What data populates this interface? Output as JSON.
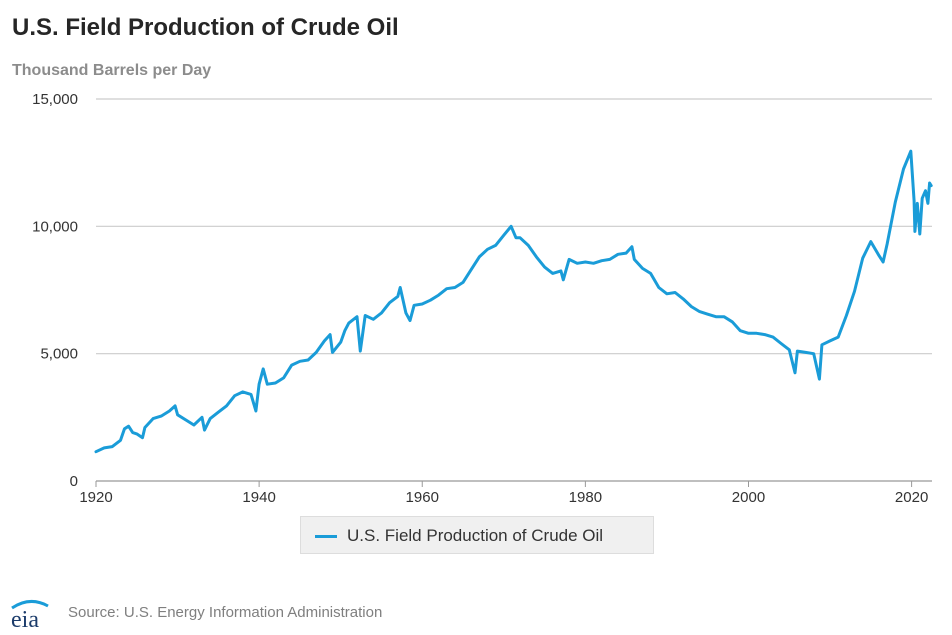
{
  "title": "U.S. Field Production of Crude Oil",
  "subtitle": "Thousand Barrels per Day",
  "legend": {
    "label": "U.S. Field Production of Crude Oil",
    "color": "#1a9cd8"
  },
  "source": "Source: U.S. Energy Information Administration",
  "logo": {
    "text": "eia",
    "icon": "eia-logo-icon"
  },
  "chart_data": {
    "type": "line",
    "title": "U.S. Field Production of Crude Oil",
    "ylabel": "Thousand Barrels per Day",
    "xlabel": "",
    "xlim": [
      1920,
      2022.5
    ],
    "ylim": [
      0,
      15000
    ],
    "x_ticks": [
      1920,
      1940,
      1960,
      1980,
      2000,
      2020
    ],
    "x_tick_labels": [
      "1920",
      "1940",
      "1960",
      "1980",
      "2000",
      "2020"
    ],
    "y_ticks": [
      0,
      5000,
      10000,
      15000
    ],
    "y_tick_labels": [
      "0",
      "5,000",
      "10,000",
      "15,000"
    ],
    "grid": "horizontal",
    "legend_position": "bottom-center",
    "series": [
      {
        "name": "U.S. Field Production of Crude Oil",
        "color": "#1a9cd8",
        "points": [
          [
            1920,
            1150
          ],
          [
            1921,
            1300
          ],
          [
            1922,
            1350
          ],
          [
            1923,
            1600
          ],
          [
            1923.5,
            2050
          ],
          [
            1924,
            2150
          ],
          [
            1924.5,
            1900
          ],
          [
            1925,
            1850
          ],
          [
            1925.7,
            1700
          ],
          [
            1926,
            2100
          ],
          [
            1927,
            2450
          ],
          [
            1928,
            2550
          ],
          [
            1929,
            2750
          ],
          [
            1929.7,
            2950
          ],
          [
            1930,
            2600
          ],
          [
            1931,
            2400
          ],
          [
            1932,
            2200
          ],
          [
            1933,
            2500
          ],
          [
            1933.3,
            2000
          ],
          [
            1934,
            2450
          ],
          [
            1935,
            2700
          ],
          [
            1936,
            2950
          ],
          [
            1937,
            3350
          ],
          [
            1938,
            3500
          ],
          [
            1939,
            3400
          ],
          [
            1939.6,
            2750
          ],
          [
            1940,
            3800
          ],
          [
            1940.5,
            4400
          ],
          [
            1941,
            3800
          ],
          [
            1942,
            3850
          ],
          [
            1943,
            4050
          ],
          [
            1944,
            4550
          ],
          [
            1945,
            4700
          ],
          [
            1946,
            4750
          ],
          [
            1947,
            5050
          ],
          [
            1948,
            5500
          ],
          [
            1948.7,
            5750
          ],
          [
            1949,
            5050
          ],
          [
            1950,
            5450
          ],
          [
            1950.5,
            5900
          ],
          [
            1951,
            6200
          ],
          [
            1952,
            6450
          ],
          [
            1952.4,
            5100
          ],
          [
            1953,
            6500
          ],
          [
            1954,
            6350
          ],
          [
            1955,
            6600
          ],
          [
            1956,
            7000
          ],
          [
            1957,
            7250
          ],
          [
            1957.3,
            7600
          ],
          [
            1958,
            6600
          ],
          [
            1958.5,
            6300
          ],
          [
            1959,
            6900
          ],
          [
            1960,
            6950
          ],
          [
            1961,
            7100
          ],
          [
            1962,
            7300
          ],
          [
            1963,
            7550
          ],
          [
            1964,
            7600
          ],
          [
            1965,
            7800
          ],
          [
            1966,
            8300
          ],
          [
            1967,
            8800
          ],
          [
            1968,
            9100
          ],
          [
            1969,
            9250
          ],
          [
            1970,
            9650
          ],
          [
            1970.9,
            10000
          ],
          [
            1971.5,
            9550
          ],
          [
            1972,
            9550
          ],
          [
            1973,
            9250
          ],
          [
            1974,
            8800
          ],
          [
            1975,
            8400
          ],
          [
            1976,
            8150
          ],
          [
            1977,
            8250
          ],
          [
            1977.3,
            7900
          ],
          [
            1978,
            8700
          ],
          [
            1979,
            8550
          ],
          [
            1980,
            8600
          ],
          [
            1981,
            8550
          ],
          [
            1982,
            8650
          ],
          [
            1983,
            8700
          ],
          [
            1984,
            8900
          ],
          [
            1985,
            8950
          ],
          [
            1985.7,
            9200
          ],
          [
            1986,
            8700
          ],
          [
            1987,
            8350
          ],
          [
            1988,
            8150
          ],
          [
            1989,
            7600
          ],
          [
            1990,
            7350
          ],
          [
            1991,
            7400
          ],
          [
            1992,
            7150
          ],
          [
            1993,
            6850
          ],
          [
            1994,
            6650
          ],
          [
            1995,
            6550
          ],
          [
            1996,
            6450
          ],
          [
            1997,
            6450
          ],
          [
            1998,
            6250
          ],
          [
            1999,
            5900
          ],
          [
            2000,
            5800
          ],
          [
            2001,
            5800
          ],
          [
            2002,
            5750
          ],
          [
            2003,
            5650
          ],
          [
            2004,
            5400
          ],
          [
            2005,
            5150
          ],
          [
            2005.7,
            4250
          ],
          [
            2006,
            5100
          ],
          [
            2007,
            5050
          ],
          [
            2008,
            5000
          ],
          [
            2008.7,
            4000
          ],
          [
            2009,
            5350
          ],
          [
            2010,
            5500
          ],
          [
            2011,
            5650
          ],
          [
            2012,
            6500
          ],
          [
            2013,
            7450
          ],
          [
            2014,
            8750
          ],
          [
            2015,
            9400
          ],
          [
            2016,
            8850
          ],
          [
            2016.5,
            8600
          ],
          [
            2017,
            9300
          ],
          [
            2018,
            10950
          ],
          [
            2019,
            12250
          ],
          [
            2019.9,
            12950
          ],
          [
            2020.3,
            11000
          ],
          [
            2020.4,
            9800
          ],
          [
            2020.7,
            10900
          ],
          [
            2021,
            9700
          ],
          [
            2021.3,
            11100
          ],
          [
            2021.7,
            11400
          ],
          [
            2022,
            10900
          ],
          [
            2022.2,
            11700
          ],
          [
            2022.4,
            11600
          ]
        ]
      }
    ]
  }
}
